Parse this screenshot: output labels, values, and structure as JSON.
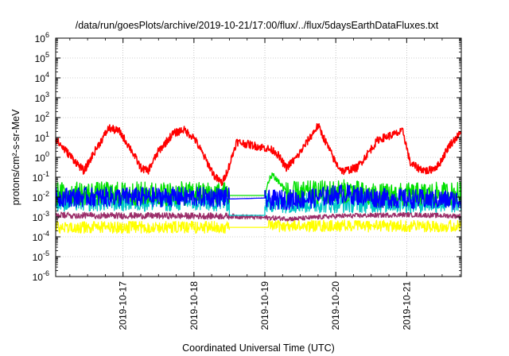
{
  "chart_data": {
    "type": "line",
    "title": "/data/run/goesPlots/archive/2019-10-21/17:00/flux/../flux/5daysEarthDataFluxes.txt",
    "xlabel": "Coordinated Universal Time (UTC)",
    "ylabel": "protons/cm²-s-sr-MeV",
    "y_scale": "log",
    "ylim": [
      1e-06,
      1000000.0
    ],
    "xlim": [
      16.05,
      21.77
    ],
    "grid": true,
    "legend": "none",
    "y_ticks": [
      {
        "base": "10",
        "exp": "-6"
      },
      {
        "base": "10",
        "exp": "-5"
      },
      {
        "base": "10",
        "exp": "-4"
      },
      {
        "base": "10",
        "exp": "-3"
      },
      {
        "base": "10",
        "exp": "-2"
      },
      {
        "base": "10",
        "exp": "-1"
      },
      {
        "base": "10",
        "exp": "0"
      },
      {
        "base": "10",
        "exp": "1"
      },
      {
        "base": "10",
        "exp": "2"
      },
      {
        "base": "10",
        "exp": "3"
      },
      {
        "base": "10",
        "exp": "4"
      },
      {
        "base": "10",
        "exp": "5"
      },
      {
        "base": "10",
        "exp": "6"
      }
    ],
    "x_ticks": [
      {
        "label": "2019-10-17",
        "x": 17
      },
      {
        "label": "2019-10-18",
        "x": 18
      },
      {
        "label": "2019-10-19",
        "x": 19
      },
      {
        "label": "2019-10-20",
        "x": 20
      },
      {
        "label": "2019-10-21",
        "x": 21
      }
    ],
    "series": [
      {
        "color": "#ffff00",
        "noise": 0.15,
        "segments": [
          {
            "x0": 16.05,
            "x1": 18.5,
            "base": [
              [
                16.05,
                0.0003
              ],
              [
                18.5,
                0.0003
              ]
            ]
          },
          {
            "x0": 18.5,
            "x1": 19.05,
            "base": [
              [
                18.5,
                0.0003
              ],
              [
                19.05,
                0.0003
              ]
            ],
            "noise": 0
          },
          {
            "x0": 19.05,
            "x1": 21.77,
            "base": [
              [
                19.05,
                0.00035
              ],
              [
                21.77,
                0.00035
              ]
            ]
          }
        ]
      },
      {
        "color": "#9b2d69",
        "noise": 0.08,
        "segments": [
          {
            "x0": 16.05,
            "x1": 18.5,
            "base": [
              [
                16.05,
                0.0012
              ],
              [
                18.5,
                0.0011
              ]
            ]
          },
          {
            "x0": 18.5,
            "x1": 21.77,
            "base": [
              [
                18.5,
                0.0011
              ],
              [
                19.4,
                0.0008
              ],
              [
                20,
                0.0011
              ],
              [
                21,
                0.0013
              ],
              [
                21.77,
                0.0011
              ]
            ],
            "noise": 0.06
          }
        ]
      },
      {
        "color": "#00c8c8",
        "noise": 0.25,
        "segments": [
          {
            "x0": 16.05,
            "x1": 18.5,
            "base": [
              [
                16.05,
                0.006
              ],
              [
                18.5,
                0.006
              ]
            ]
          },
          {
            "x0": 18.5,
            "x1": 19.0,
            "base": [
              [
                18.5,
                0.0012
              ],
              [
                19.0,
                0.0012
              ]
            ],
            "noise": 0
          },
          {
            "x0": 19.0,
            "x1": 21.77,
            "base": [
              [
                19.0,
                0.005
              ],
              [
                21.77,
                0.005
              ]
            ]
          }
        ]
      },
      {
        "color": "#00e000",
        "noise": 0.3,
        "segments": [
          {
            "x0": 16.05,
            "x1": 18.5,
            "base": [
              [
                16.05,
                0.015
              ],
              [
                18.5,
                0.015
              ]
            ]
          },
          {
            "x0": 18.5,
            "x1": 19.0,
            "base": [
              [
                18.5,
                0.012
              ],
              [
                19.0,
                0.012
              ]
            ],
            "noise": 0
          },
          {
            "x0": 19.0,
            "x1": 19.3,
            "base": [
              [
                19.0,
                0.015
              ],
              [
                19.1,
                0.15
              ],
              [
                19.3,
                0.02
              ]
            ],
            "noise": 0.1
          },
          {
            "x0": 19.3,
            "x1": 21.77,
            "base": [
              [
                19.3,
                0.015
              ],
              [
                20.2,
                0.02
              ],
              [
                20.5,
                0.012
              ],
              [
                21.77,
                0.015
              ]
            ]
          }
        ]
      },
      {
        "color": "#0000ff",
        "noise": 0.25,
        "segments": [
          {
            "x0": 16.05,
            "x1": 18.5,
            "base": [
              [
                16.05,
                0.01
              ],
              [
                18.5,
                0.01
              ]
            ]
          },
          {
            "x0": 18.5,
            "x1": 19.0,
            "base": [
              [
                18.5,
                0.008
              ],
              [
                19.0,
                0.009
              ]
            ],
            "noise": 0
          },
          {
            "x0": 19.0,
            "x1": 21.77,
            "base": [
              [
                19.0,
                0.007
              ],
              [
                19.6,
                0.008
              ],
              [
                20.1,
                0.015
              ],
              [
                20.6,
                0.009
              ],
              [
                21.77,
                0.007
              ]
            ]
          }
        ]
      },
      {
        "color": "#ff0000",
        "noise": 0.1,
        "segments": [
          {
            "x0": 16.05,
            "x1": 21.77,
            "base": [
              [
                16.05,
                8
              ],
              [
                16.3,
                0.8
              ],
              [
                16.45,
                0.2
              ],
              [
                16.6,
                2
              ],
              [
                16.8,
                30
              ],
              [
                16.95,
                20
              ],
              [
                17.1,
                3
              ],
              [
                17.25,
                0.3
              ],
              [
                17.35,
                0.2
              ],
              [
                17.5,
                2
              ],
              [
                17.7,
                15
              ],
              [
                17.85,
                25
              ],
              [
                18.0,
                10
              ],
              [
                18.15,
                1
              ],
              [
                18.3,
                0.1
              ],
              [
                18.4,
                0.05
              ],
              [
                18.5,
                0.4
              ],
              [
                18.6,
                6
              ],
              [
                19.0,
                3
              ],
              [
                19.15,
                2
              ],
              [
                19.3,
                0.3
              ],
              [
                19.45,
                1
              ],
              [
                19.75,
                40
              ],
              [
                20.0,
                0.5
              ],
              [
                20.1,
                0.2
              ],
              [
                20.3,
                0.3
              ],
              [
                20.6,
                8
              ],
              [
                20.95,
                20
              ],
              [
                21.05,
                0.5
              ],
              [
                21.15,
                0.3
              ],
              [
                21.3,
                0.2
              ],
              [
                21.45,
                0.4
              ],
              [
                21.6,
                4
              ],
              [
                21.77,
                18
              ]
            ]
          }
        ]
      }
    ]
  }
}
